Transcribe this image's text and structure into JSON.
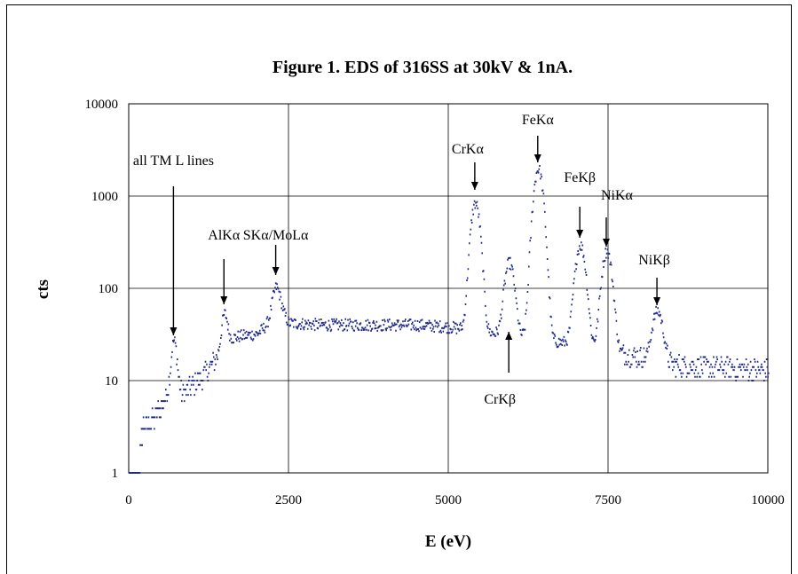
{
  "chart_data": {
    "type": "scatter",
    "title": "Figure 1.  EDS of 316SS at 30kV & 1nA.",
    "xlabel": "E (eV)",
    "ylabel": "cts",
    "xlim": [
      0,
      10000
    ],
    "ylim": [
      1,
      10000
    ],
    "yscale": "log",
    "grid": true,
    "x_ticks": [
      "0",
      "2500",
      "5000",
      "7500",
      "10000"
    ],
    "y_ticks": [
      "1",
      "10",
      "100",
      "1000",
      "10000"
    ],
    "marker_color": "#1f2a8a",
    "series": [
      {
        "background": [
          [
            0,
            1
          ],
          [
            150,
            1
          ],
          [
            200,
            3
          ],
          [
            400,
            4
          ],
          [
            600,
            7
          ],
          [
            800,
            7
          ],
          [
            1000,
            9
          ],
          [
            1200,
            12
          ],
          [
            1350,
            17
          ],
          [
            1500,
            27
          ],
          [
            1700,
            30
          ],
          [
            2000,
            32
          ],
          [
            2200,
            42
          ],
          [
            2300,
            62
          ],
          [
            2500,
            42
          ],
          [
            3000,
            40
          ],
          [
            3500,
            40
          ],
          [
            4000,
            40
          ],
          [
            4500,
            40
          ],
          [
            5000,
            38
          ],
          [
            5500,
            34
          ],
          [
            6000,
            30
          ],
          [
            6500,
            27
          ],
          [
            7000,
            25
          ],
          [
            7600,
            20
          ],
          [
            8000,
            18
          ],
          [
            8400,
            15
          ],
          [
            9000,
            14
          ],
          [
            10000,
            13
          ]
        ],
        "peaks": [
          {
            "label": "all TM L lines",
            "x": 700,
            "height": 25,
            "width": 40
          },
          {
            "label": "AlKα",
            "x": 1490,
            "height": 45,
            "width": 40
          },
          {
            "label": "SKα/MoLα",
            "x": 2300,
            "height": 85,
            "width": 60
          },
          {
            "label": "CrKα",
            "x": 5415,
            "height": 820,
            "width": 62
          },
          {
            "label": "CrKβ",
            "x": 5947,
            "height": 180,
            "width": 65
          },
          {
            "label": "FeKα",
            "x": 6400,
            "height": 1950,
            "width": 65
          },
          {
            "label": "FeKβ",
            "x": 7058,
            "height": 285,
            "width": 68
          },
          {
            "label": "NiKα",
            "x": 7472,
            "height": 245,
            "width": 68
          },
          {
            "label": "NiKβ",
            "x": 8265,
            "height": 52,
            "width": 72
          }
        ]
      }
    ],
    "annotations": [
      {
        "text": "all TM L lines",
        "x": 700,
        "y": 25
      },
      {
        "text": "AlKα",
        "x": 1490,
        "y": 48
      },
      {
        "text": "SKα/MoLα",
        "x": 2300,
        "y": 90
      },
      {
        "text": "CrKα",
        "x": 5415,
        "y": 870
      },
      {
        "text": "CrKβ",
        "x": 5947,
        "y": 30
      },
      {
        "text": "FeKα",
        "x": 6400,
        "y": 2000
      },
      {
        "text": "FeKβ",
        "x": 7058,
        "y": 300
      },
      {
        "text": "NiKα",
        "x": 7472,
        "y": 260
      },
      {
        "text": "NiKβ",
        "x": 8265,
        "y": 55
      }
    ]
  }
}
